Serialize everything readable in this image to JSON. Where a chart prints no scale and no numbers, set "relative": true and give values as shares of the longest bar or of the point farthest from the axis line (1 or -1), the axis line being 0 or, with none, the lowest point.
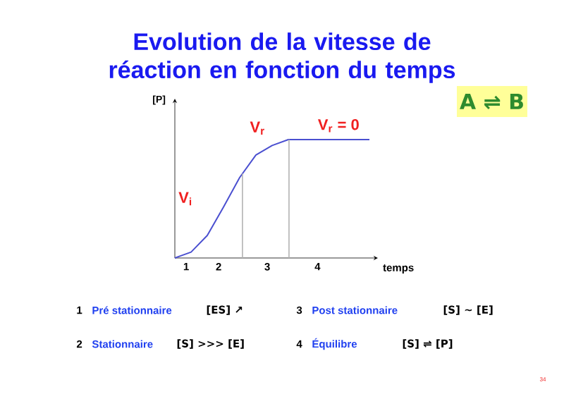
{
  "chart_data": {
    "type": "line",
    "relative": true,
    "title": "Evolution de la vitesse de réaction en fonction du temps",
    "xlabel": "temps",
    "ylabel": "[P]",
    "categories": [
      null,
      null,
      null,
      null,
      null,
      null,
      null,
      null,
      null,
      null,
      null,
      null,
      null
    ],
    "series": [
      {
        "color": "#4a4fd0",
        "values": [
          0,
          0.05,
          0.19,
          0.43,
          0.68,
          0.87,
          0.95,
          1,
          1,
          1,
          1,
          1,
          1
        ]
      }
    ],
    "annotations": [
      "V$_{i}$",
      "V$_{r}$",
      "V$_{r}$ = 0",
      "1",
      "2",
      "3",
      "4",
      "A ⇌ B",
      "1",
      "Pré stationnaire",
      "[ES] ↗",
      "3",
      "Post stationnaire",
      "[S] ~ [E]",
      "2",
      "Stationnaire",
      "[S] >>> [E]",
      "4",
      "Équilibre",
      "[S] ⇌ [P]",
      "34"
    ]
  }
}
